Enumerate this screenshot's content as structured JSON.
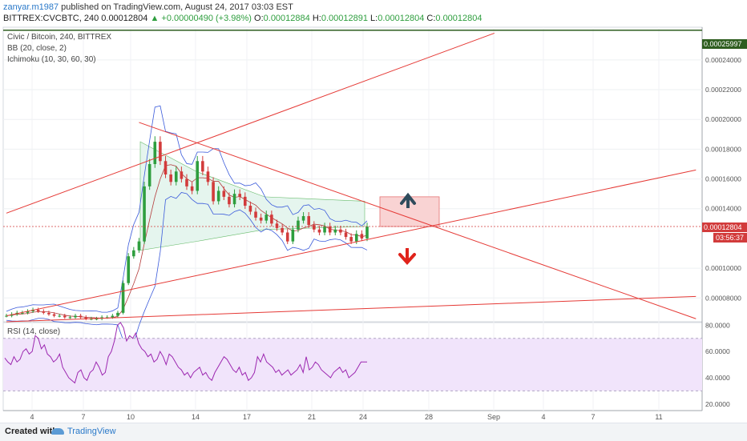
{
  "header": {
    "publisher": "zanyar.m1987",
    "published_text": "published on TradingView.com, August 24, 2017 03:03 EST",
    "symbol": "BITTREX:CVCBTC, 240",
    "last": "0.00012804",
    "change": "+0.00000490 (+3.98%)",
    "o_label": "O:",
    "o_value": "0.00012884",
    "h_label": "H:",
    "h_value": "0.00012891",
    "l_label": "L:",
    "l_value": "0.00012804",
    "c_label": "C:",
    "c_value": "0.00012804"
  },
  "legend": {
    "title": "Civic / Bitcoin, 240, BITTREX",
    "bb": "BB (20, close, 2)",
    "ichimoku": "Ichimoku (10, 30, 60, 30)",
    "rsi": "RSI (14, close)"
  },
  "price_badges": {
    "top": "0.00025997",
    "last": "0.00012804",
    "countdown": "03:56:37"
  },
  "colors": {
    "up": "#2e9e3e",
    "down": "#d23b3b",
    "trendline": "#e53935",
    "bb": "#3b5bdb",
    "rsi": "#9c27b0",
    "rsi_band": "#f1e4fb",
    "cloud": "#e5f5ee",
    "future_cloud": "#f9d3d3"
  },
  "arrows": {
    "up": "up-arrow-icon",
    "down": "down-arrow-icon"
  },
  "footer": {
    "created": "Created with",
    "brand": "TradingView"
  },
  "chart_data": [
    {
      "type": "candlestick",
      "title": "Civic / Bitcoin, 240, BITTREX",
      "x_ticks": [
        "4",
        "7",
        "10",
        "14",
        "17",
        "21",
        "24",
        "28",
        "Sep",
        "4",
        "7",
        "11"
      ],
      "y_ticks": [
        "0.00024000",
        "0.00022000",
        "0.00020000",
        "0.00018000",
        "0.00016000",
        "0.00014000",
        "0.00010000",
        "0.00008000"
      ],
      "ylim": [
        6.4e-05,
        0.000262
      ],
      "close_series": [
        6.8e-05,
        6.9e-05,
        7e-05,
        7e-05,
        7.1e-05,
        7.2e-05,
        7.1e-05,
        7e-05,
        6.9e-05,
        6.8e-05,
        6.8e-05,
        6.7e-05,
        6.7e-05,
        6.8e-05,
        6.7e-05,
        6.6e-05,
        6.6e-05,
        6.6e-05,
        6.7e-05,
        6.7e-05,
        6.8e-05,
        7e-05,
        9e-05,
        0.000108,
        0.000112,
        0.000118,
        0.000155,
        0.00017,
        0.000185,
        0.000172,
        0.000163,
        0.000158,
        0.000165,
        0.00016,
        0.000155,
        0.000152,
        0.000172,
        0.000165,
        0.000158,
        0.000145,
        0.000152,
        0.000148,
        0.000143,
        0.00015,
        0.000148,
        0.000142,
        0.000138,
        0.000134,
        0.000132,
        0.000136,
        0.00013,
        0.000127,
        0.000124,
        0.000118,
        0.000126,
        0.000132,
        0.000135,
        0.000129,
        0.000126,
        0.000124,
        0.000128,
        0.000124,
        0.000126,
        0.000124,
        0.000121,
        0.000118,
        0.000123,
        0.00012,
        0.000128
      ],
      "trendlines": [
        {
          "name": "upper-rising",
          "from": [
            "x0",
            0.000137
          ],
          "to": [
            "x92",
            0.000258
          ]
        },
        {
          "name": "falling-wedge-top",
          "from": [
            "x25",
            0.000198
          ],
          "to": [
            "x130",
            6.6e-05
          ]
        },
        {
          "name": "rising-support",
          "from": [
            "x0",
            6.8e-05
          ],
          "to": [
            "x130",
            0.000166
          ]
        },
        {
          "name": "long-support",
          "from": [
            "x0",
            6.4e-05
          ],
          "to": [
            "x130",
            8.1e-05
          ]
        }
      ],
      "horizontal_levels": [
        0.00025997,
        0.00012804
      ]
    },
    {
      "type": "line",
      "title": "RSI (14, close)",
      "y_ticks": [
        "80.0000",
        "60.0000",
        "40.0000",
        "20.0000"
      ],
      "ylim": [
        15,
        82
      ],
      "band": [
        30,
        70
      ],
      "values": [
        55,
        52,
        50,
        56,
        52,
        54,
        60,
        62,
        58,
        60,
        72,
        70,
        62,
        65,
        58,
        56,
        52,
        54,
        58,
        48,
        44,
        40,
        38,
        36,
        44,
        46,
        40,
        38,
        44,
        46,
        52,
        48,
        42,
        44,
        56,
        60,
        68,
        80,
        82,
        78,
        68,
        72,
        70,
        74,
        66,
        62,
        60,
        56,
        58,
        52,
        54,
        60,
        56,
        50,
        58,
        56,
        52,
        48,
        46,
        42,
        44,
        40,
        44,
        46,
        48,
        42,
        44,
        40,
        38,
        44,
        48,
        52,
        56,
        54,
        50,
        46,
        44,
        48,
        42,
        44,
        38,
        40,
        44,
        56,
        52,
        58,
        52,
        50,
        48,
        44,
        46,
        42,
        44,
        46,
        42,
        44,
        46,
        50,
        44,
        56,
        46,
        48,
        52,
        50,
        46,
        44,
        42,
        40,
        44,
        46,
        48,
        44,
        46,
        40,
        42,
        44,
        48,
        52,
        52,
        52
      ]
    }
  ]
}
